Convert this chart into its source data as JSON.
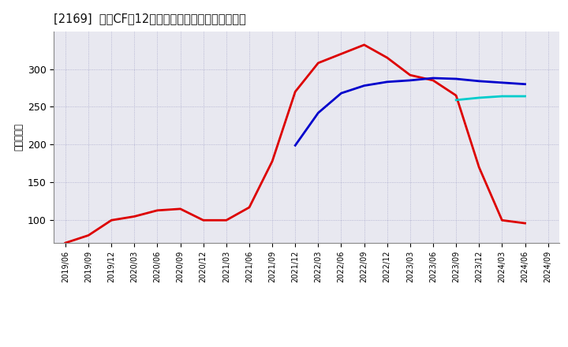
{
  "title": "[2169]  投賄CFの12か月移動合計の標準偏差の推移",
  "ylabel": "（百万円）",
  "background_color": "#ffffff",
  "plot_background_color": "#e8e8f0",
  "grid_color": "#aaaacc",
  "ylim": [
    70,
    350
  ],
  "yticks": [
    100,
    150,
    200,
    250,
    300
  ],
  "series": {
    "3year": {
      "color": "#dd0000",
      "x": [
        "2019/06",
        "2019/09",
        "2019/12",
        "2020/03",
        "2020/06",
        "2020/09",
        "2020/12",
        "2021/03",
        "2021/06",
        "2021/09",
        "2021/12",
        "2022/03",
        "2022/06",
        "2022/09",
        "2022/12",
        "2023/03",
        "2023/06",
        "2023/09",
        "2023/12",
        "2024/03",
        "2024/06"
      ],
      "y": [
        70,
        80,
        100,
        105,
        113,
        115,
        100,
        100,
        117,
        178,
        270,
        308,
        320,
        332,
        315,
        292,
        285,
        265,
        170,
        100,
        96
      ]
    },
    "5year": {
      "color": "#0000cc",
      "x": [
        "2021/12",
        "2022/03",
        "2022/06",
        "2022/09",
        "2022/12",
        "2023/03",
        "2023/06",
        "2023/09",
        "2023/12",
        "2024/03",
        "2024/06"
      ],
      "y": [
        199,
        242,
        268,
        278,
        283,
        285,
        288,
        287,
        284,
        282,
        280
      ]
    },
    "7year": {
      "color": "#00cccc",
      "x": [
        "2023/09",
        "2023/12",
        "2024/03",
        "2024/06"
      ],
      "y": [
        259,
        262,
        264,
        264
      ]
    },
    "10year": {
      "color": "#008800",
      "x": [],
      "y": []
    }
  },
  "xticks": [
    "2019/06",
    "2019/09",
    "2019/12",
    "2020/03",
    "2020/06",
    "2020/09",
    "2020/12",
    "2021/03",
    "2021/06",
    "2021/09",
    "2021/12",
    "2022/03",
    "2022/06",
    "2022/09",
    "2022/12",
    "2023/03",
    "2023/06",
    "2023/09",
    "2023/12",
    "2024/03",
    "2024/06",
    "2024/09"
  ]
}
